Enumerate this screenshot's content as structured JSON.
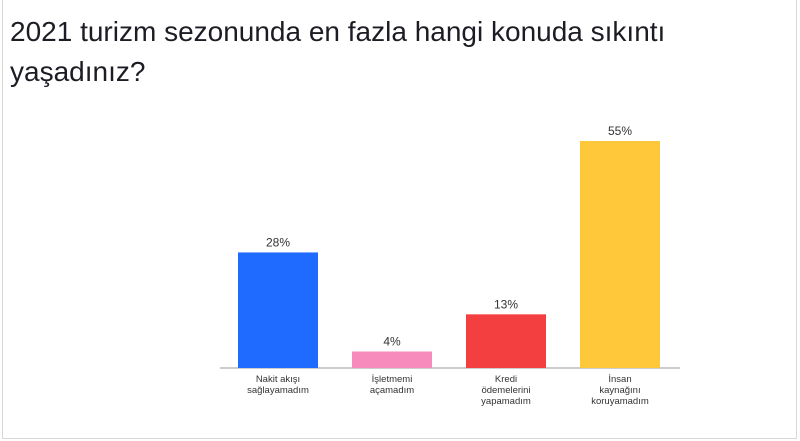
{
  "title": "2021 turizm sezonunda en fazla hangi konuda sıkıntı yaşadınız?",
  "chart_data": {
    "type": "bar",
    "categories": [
      [
        "Nakit akışı",
        "sağlayamadım"
      ],
      [
        "İşletmemi",
        "açamadım"
      ],
      [
        "Kredi",
        "ödemelerini",
        "yapamadım"
      ],
      [
        "İnsan",
        "kaynağını",
        "koruyamadım"
      ]
    ],
    "values": [
      28,
      4,
      13,
      55
    ],
    "value_labels": [
      "28%",
      "4%",
      "13%",
      "55%"
    ],
    "colors": [
      "#1f6bff",
      "#f78cbc",
      "#f33f3f",
      "#ffc83a"
    ],
    "ylim": [
      0,
      55
    ],
    "grid": false,
    "legend": "none"
  }
}
